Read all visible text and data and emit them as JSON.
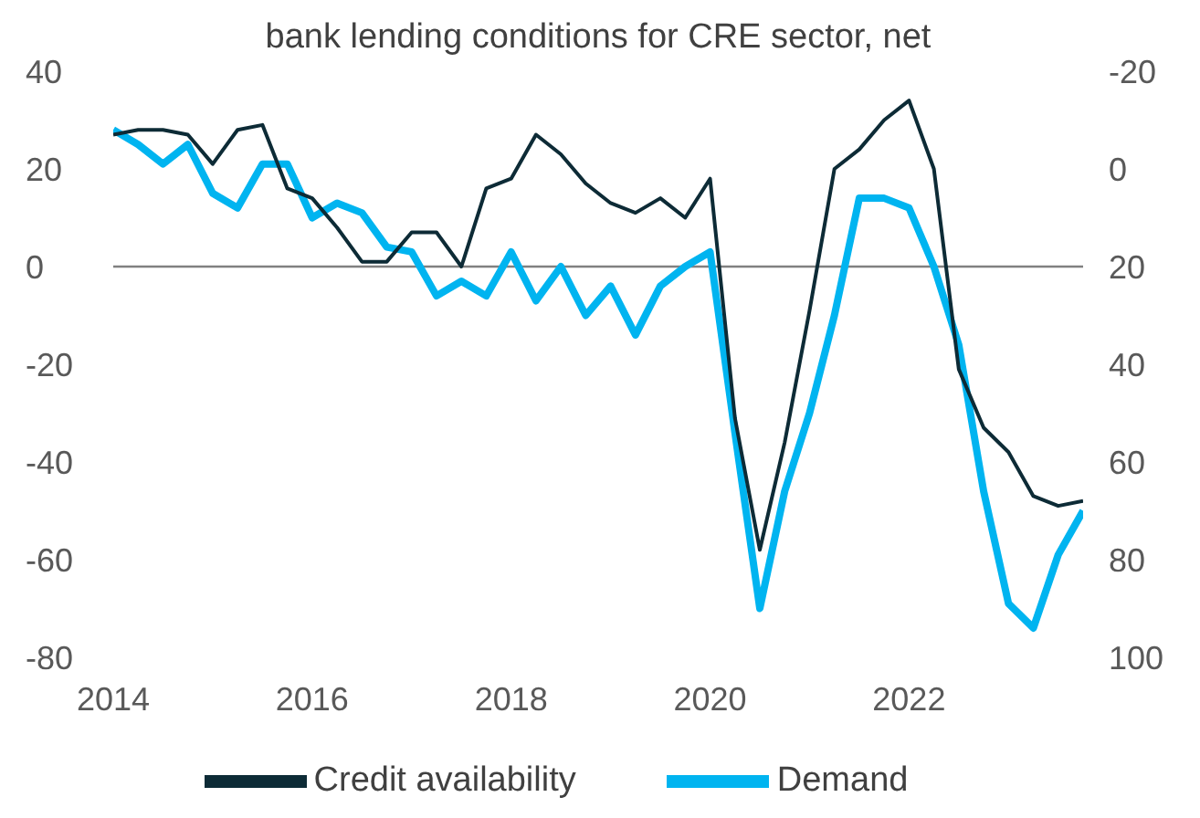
{
  "chart_data": {
    "type": "line",
    "title": "bank lending conditions for CRE sector, net",
    "x": [
      2014,
      2014.25,
      2014.5,
      2014.75,
      2015,
      2015.25,
      2015.5,
      2015.75,
      2016,
      2016.25,
      2016.5,
      2016.75,
      2017,
      2017.25,
      2017.5,
      2017.75,
      2018,
      2018.25,
      2018.5,
      2018.75,
      2019,
      2019.25,
      2019.5,
      2019.75,
      2020,
      2020.25,
      2020.5,
      2020.75,
      2021,
      2021.25,
      2021.5,
      2021.75,
      2022,
      2022.25,
      2022.5,
      2022.75,
      2023,
      2023.25,
      2023.5,
      2023.75
    ],
    "series": [
      {
        "name": "Demand",
        "color": "#00b4f0",
        "values": [
          28,
          25,
          21,
          25,
          15,
          12,
          21,
          21,
          10,
          13,
          11,
          4,
          3,
          -6,
          -3,
          -6,
          3,
          -7,
          0,
          -10,
          -4,
          -14,
          -4,
          0,
          3,
          -34,
          -70,
          -46,
          -30,
          -10,
          14,
          14,
          12,
          0,
          -16,
          -46,
          -69,
          -74,
          -59,
          -50
        ]
      },
      {
        "name": "Credit availability",
        "color": "#0d2b36",
        "axis": "y2",
        "values": [
          -7,
          -8,
          -8,
          -7,
          -1,
          -8,
          -9,
          4,
          6,
          12,
          19,
          19,
          13,
          13,
          20,
          4,
          2,
          -7,
          -3,
          3,
          7,
          9,
          6,
          10,
          2,
          51,
          78,
          56,
          29,
          0,
          -4,
          -10,
          -14,
          0,
          41,
          53,
          58,
          67,
          69,
          68
        ]
      }
    ],
    "xlim": [
      2014,
      2023.75
    ],
    "xticks": [
      2014,
      2016,
      2018,
      2020,
      2022
    ],
    "ylim": [
      -80,
      40
    ],
    "yticks": [
      -80,
      -60,
      -40,
      -20,
      0,
      20,
      40
    ],
    "y2lim": [
      100,
      -20
    ],
    "y2ticks": [
      100,
      80,
      60,
      40,
      20,
      0,
      -20
    ],
    "ref_lines": [
      {
        "axis": "y",
        "value": 0,
        "color": "#808080"
      }
    ],
    "grid": false,
    "legend": "bottom",
    "marker": "none",
    "line_style": "solid"
  }
}
